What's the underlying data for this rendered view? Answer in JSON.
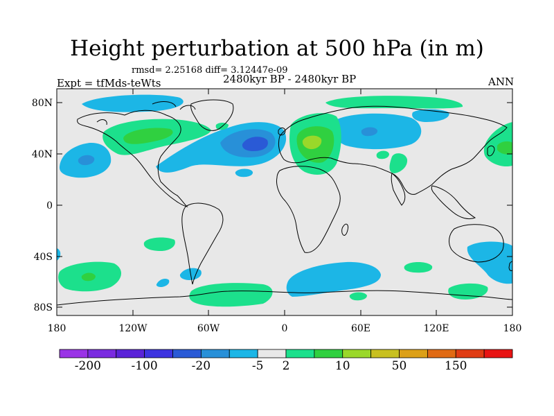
{
  "header": {
    "title": "Height perturbation at 500 hPa (in m)",
    "stats": "rmsd= 2.25168 diff= 3.12447e-09",
    "experiment": "Expt = tfMds-teWts",
    "period": "2480kyr BP - 2480kyr BP",
    "season": "ANN"
  },
  "map": {
    "lat_ticks": [
      "80N",
      "40N",
      "0",
      "40S",
      "80S"
    ],
    "lon_ticks": [
      "180",
      "120W",
      "60W",
      "0",
      "60E",
      "120E",
      "180"
    ],
    "background_color": "#e8e8e8"
  },
  "colorbar": {
    "colors": [
      "#9a33e6",
      "#7a2be0",
      "#5a23d8",
      "#3d33e0",
      "#2a5ad6",
      "#2890d8",
      "#1cb6e6",
      "#e8e8e8",
      "#1ce08c",
      "#30d040",
      "#9ad82a",
      "#c8c020",
      "#dca018",
      "#e06a14",
      "#e03c14",
      "#e81414"
    ],
    "labels": [
      "-200",
      "-100",
      "-20",
      "-5",
      "2",
      "10",
      "50",
      "150"
    ],
    "label_boundaries": [
      1,
      3,
      5,
      7,
      8,
      10,
      12,
      14
    ]
  }
}
